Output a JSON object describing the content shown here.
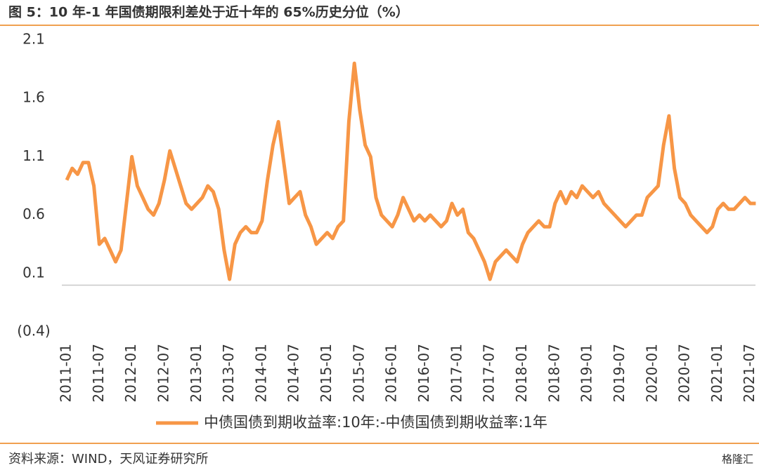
{
  "chart_data": {
    "type": "line",
    "title": "图 5：10 年-1 年国债期限利差处于近十年的 65%历史分位（%）",
    "source": "资料来源：WIND，天风证券研究所",
    "watermark": "格隆汇",
    "x": [
      "2011-01",
      "2011-02",
      "2011-03",
      "2011-04",
      "2011-05",
      "2011-06",
      "2011-07",
      "2011-08",
      "2011-09",
      "2011-10",
      "2011-11",
      "2011-12",
      "2012-01",
      "2012-02",
      "2012-03",
      "2012-04",
      "2012-05",
      "2012-06",
      "2012-07",
      "2012-08",
      "2012-09",
      "2012-10",
      "2012-11",
      "2012-12",
      "2013-01",
      "2013-02",
      "2013-03",
      "2013-04",
      "2013-05",
      "2013-06",
      "2013-07",
      "2013-08",
      "2013-09",
      "2013-10",
      "2013-11",
      "2013-12",
      "2014-01",
      "2014-02",
      "2014-03",
      "2014-04",
      "2014-05",
      "2014-06",
      "2014-07",
      "2014-08",
      "2014-09",
      "2014-10",
      "2014-11",
      "2014-12",
      "2015-01",
      "2015-02",
      "2015-03",
      "2015-04",
      "2015-05",
      "2015-06",
      "2015-07",
      "2015-08",
      "2015-09",
      "2015-10",
      "2015-11",
      "2015-12",
      "2016-01",
      "2016-02",
      "2016-03",
      "2016-04",
      "2016-05",
      "2016-06",
      "2016-07",
      "2016-08",
      "2016-09",
      "2016-10",
      "2016-11",
      "2016-12",
      "2017-01",
      "2017-02",
      "2017-03",
      "2017-04",
      "2017-05",
      "2017-06",
      "2017-07",
      "2017-08",
      "2017-09",
      "2017-10",
      "2017-11",
      "2017-12",
      "2018-01",
      "2018-02",
      "2018-03",
      "2018-04",
      "2018-05",
      "2018-06",
      "2018-07",
      "2018-08",
      "2018-09",
      "2018-10",
      "2018-11",
      "2018-12",
      "2019-01",
      "2019-02",
      "2019-03",
      "2019-04",
      "2019-05",
      "2019-06",
      "2019-07",
      "2019-08",
      "2019-09",
      "2019-10",
      "2019-11",
      "2019-12",
      "2020-01",
      "2020-02",
      "2020-03",
      "2020-04",
      "2020-05",
      "2020-06",
      "2020-07",
      "2020-08",
      "2020-09",
      "2020-10",
      "2020-11",
      "2020-12",
      "2021-01",
      "2021-02",
      "2021-03",
      "2021-04",
      "2021-05",
      "2021-06",
      "2021-07",
      "2021-08"
    ],
    "series": [
      {
        "name": "中债国债到期收益率:10年:-中债国债到期收益率:1年",
        "color": "#f79646",
        "values": [
          0.9,
          1.0,
          0.95,
          1.05,
          1.05,
          0.85,
          0.35,
          0.4,
          0.3,
          0.2,
          0.3,
          0.7,
          1.1,
          0.85,
          0.75,
          0.65,
          0.6,
          0.7,
          0.9,
          1.15,
          1.0,
          0.85,
          0.7,
          0.65,
          0.7,
          0.75,
          0.85,
          0.8,
          0.65,
          0.3,
          0.05,
          0.35,
          0.45,
          0.5,
          0.45,
          0.45,
          0.55,
          0.9,
          1.2,
          1.4,
          1.05,
          0.7,
          0.75,
          0.8,
          0.6,
          0.5,
          0.35,
          0.4,
          0.45,
          0.4,
          0.5,
          0.55,
          1.4,
          1.9,
          1.5,
          1.2,
          1.1,
          0.75,
          0.6,
          0.55,
          0.5,
          0.6,
          0.75,
          0.65,
          0.55,
          0.6,
          0.55,
          0.6,
          0.55,
          0.5,
          0.55,
          0.7,
          0.6,
          0.65,
          0.45,
          0.4,
          0.3,
          0.2,
          0.05,
          0.2,
          0.25,
          0.3,
          0.25,
          0.2,
          0.35,
          0.45,
          0.5,
          0.55,
          0.5,
          0.5,
          0.7,
          0.8,
          0.7,
          0.8,
          0.75,
          0.85,
          0.8,
          0.75,
          0.8,
          0.7,
          0.65,
          0.6,
          0.55,
          0.5,
          0.55,
          0.6,
          0.6,
          0.75,
          0.8,
          0.85,
          1.2,
          1.45,
          1.0,
          0.75,
          0.7,
          0.6,
          0.55,
          0.5,
          0.45,
          0.5,
          0.65,
          0.7,
          0.65,
          0.65,
          0.7,
          0.75,
          0.7,
          0.7
        ]
      }
    ],
    "xticks": [
      "2011-01",
      "2011-07",
      "2012-01",
      "2012-07",
      "2013-01",
      "2013-07",
      "2014-01",
      "2014-07",
      "2015-01",
      "2015-07",
      "2016-01",
      "2016-07",
      "2017-01",
      "2017-07",
      "2018-01",
      "2018-07",
      "2019-01",
      "2019-07",
      "2020-01",
      "2020-07",
      "2021-01",
      "2021-07"
    ],
    "ylim": [
      -0.4,
      2.1
    ],
    "yticks": [
      2.1,
      1.6,
      1.1,
      0.6,
      0.1,
      {
        "value": -0.4,
        "label": "(0.4)"
      }
    ],
    "negative_tick_color": "#e00000",
    "legend": "bottom"
  }
}
